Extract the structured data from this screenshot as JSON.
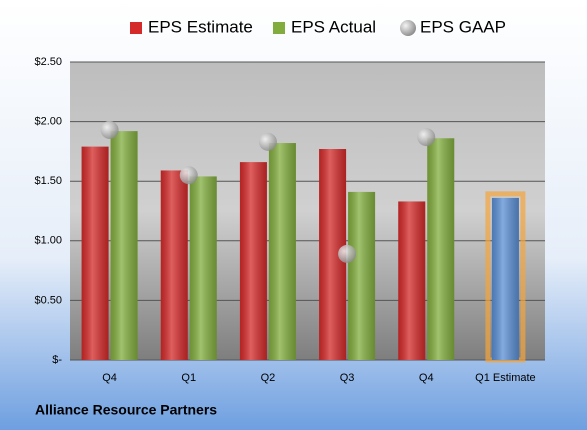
{
  "chart_data": {
    "type": "bar",
    "title": "Alliance Resource Partners",
    "categories": [
      "Q4",
      "Q1",
      "Q2",
      "Q3",
      "Q4",
      "Q1 Estimate"
    ],
    "series": [
      {
        "name": "EPS Estimate",
        "color": "#d42a2a",
        "values": [
          1.79,
          1.59,
          1.66,
          1.77,
          1.33,
          1.36
        ],
        "colors": [
          "#d42a2a",
          "#d42a2a",
          "#d42a2a",
          "#d42a2a",
          "#d42a2a",
          "#5b8fd4"
        ]
      },
      {
        "name": "EPS Actual",
        "color": "#82ad3e",
        "values": [
          1.92,
          1.54,
          1.82,
          1.41,
          1.86,
          null
        ]
      },
      {
        "name": "EPS GAAP",
        "color": "#a8a8a8",
        "marker": "circle",
        "values": [
          1.93,
          1.55,
          1.83,
          0.89,
          1.87,
          null
        ]
      }
    ],
    "ylim": [
      0,
      2.5
    ],
    "yticks": [
      {
        "value": 0,
        "label": "$-"
      },
      {
        "value": 0.5,
        "label": "$0.50"
      },
      {
        "value": 1,
        "label": "$1.00"
      },
      {
        "value": 1.5,
        "label": "$1.50"
      },
      {
        "value": 2,
        "label": "$2.00"
      },
      {
        "value": 2.5,
        "label": "$2.50"
      }
    ],
    "grid": true
  }
}
